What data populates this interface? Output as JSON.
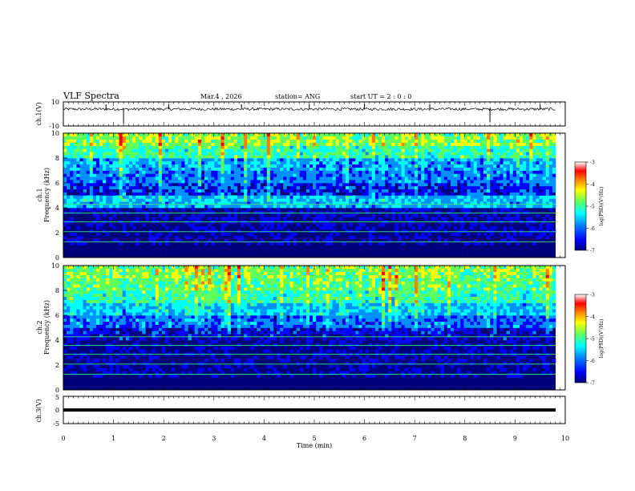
{
  "header": {
    "title": "VLF Spectra",
    "date": "Mar.4 , 2026",
    "station": "station= ANG",
    "start": "start  UT =   2 : 0  : 0"
  },
  "colorbar": {
    "label": "log(PSD)(V²/Hz)",
    "ticks": [
      "-3",
      "-4",
      "-5",
      "-6",
      "-7"
    ],
    "range": [
      -7,
      -3
    ],
    "colors": [
      "#00007a",
      "#0000ff",
      "#0090ff",
      "#00ffff",
      "#60ff60",
      "#ffff00",
      "#ff8000",
      "#ff0000",
      "#ffffff"
    ]
  },
  "chart_data": [
    {
      "type": "line",
      "title": "ch.1 waveform",
      "ylabel": "ch.1(V)",
      "ylim": [
        -10,
        10
      ],
      "yticks": [
        "10",
        "-10"
      ],
      "x": [
        0,
        0.5,
        1.0,
        1.2,
        1.5,
        2.0,
        2.5,
        3.0,
        3.5,
        4.0,
        4.5,
        5.0,
        5.5,
        6.0,
        6.5,
        7.0,
        7.5,
        8.0,
        8.5,
        9.0,
        9.5,
        9.8
      ],
      "values": [
        4,
        4,
        4,
        -8,
        4,
        4,
        4,
        4,
        4,
        4,
        4,
        4,
        4,
        4,
        4,
        4,
        4,
        4,
        -7,
        4,
        4,
        4
      ]
    },
    {
      "type": "heatmap",
      "title": "ch.1 spectrogram",
      "ylabel": "ch.1 Frequency (kHz)",
      "ylim": [
        0,
        10
      ],
      "yticks": [
        "0",
        "2",
        "4",
        "6",
        "8",
        "10"
      ],
      "freq_kHz": [
        0.5,
        1.5,
        2.5,
        3.5,
        4.5,
        5.5,
        6.5,
        7.5,
        8.5,
        9.5
      ],
      "log_psd": [
        -7.0,
        -6.6,
        -6.6,
        -6.5,
        -5.6,
        -6.3,
        -6.0,
        -5.8,
        -5.2,
        -4.8
      ]
    },
    {
      "type": "heatmap",
      "title": "ch.2 spectrogram",
      "ylabel": "ch.2 Frequency (kHz)",
      "ylim": [
        0,
        10
      ],
      "yticks": [
        "0",
        "2",
        "4",
        "6",
        "8",
        "10"
      ],
      "freq_kHz": [
        0.5,
        1.5,
        2.5,
        3.5,
        4.5,
        5.5,
        6.5,
        7.5,
        8.5,
        9.5
      ],
      "log_psd": [
        -7.0,
        -6.6,
        -6.6,
        -6.6,
        -6.4,
        -6.0,
        -5.6,
        -5.2,
        -5.0,
        -4.9
      ]
    },
    {
      "type": "line",
      "title": "ch.3 waveform",
      "ylabel": "ch.3(V)",
      "ylim": [
        -5,
        5
      ],
      "yticks": [
        "5",
        "0",
        "-5"
      ],
      "x": [
        0,
        9.8
      ],
      "values": [
        -1,
        -1
      ]
    }
  ],
  "xaxis": {
    "label": "Time (min)",
    "range": [
      0,
      10
    ],
    "ticks": [
      "0",
      "1",
      "2",
      "3",
      "4",
      "5",
      "6",
      "7",
      "8",
      "9",
      "10"
    ]
  }
}
